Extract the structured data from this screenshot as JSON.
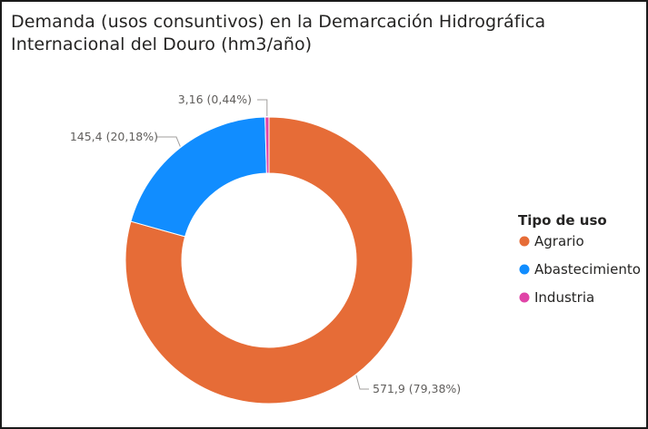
{
  "chart_data": {
    "type": "pie",
    "title": "Demanda (usos consuntivos) en la Demarcación Hidrográfica Internacional del Douro (hm3/año)",
    "legend": {
      "title": "Tipo de uso",
      "position": "right"
    },
    "slices": [
      {
        "name": "Agrario",
        "value": 571.9,
        "label": "571,9 (79,38%)",
        "color": "#E66C37"
      },
      {
        "name": "Abastecimiento",
        "value": 145.4,
        "label": "145,4 (20,18%)",
        "color": "#118DFF"
      },
      {
        "name": "Industria",
        "value": 3.16,
        "label": "3,16 (0,44%)",
        "color": "#E044A7"
      }
    ]
  }
}
